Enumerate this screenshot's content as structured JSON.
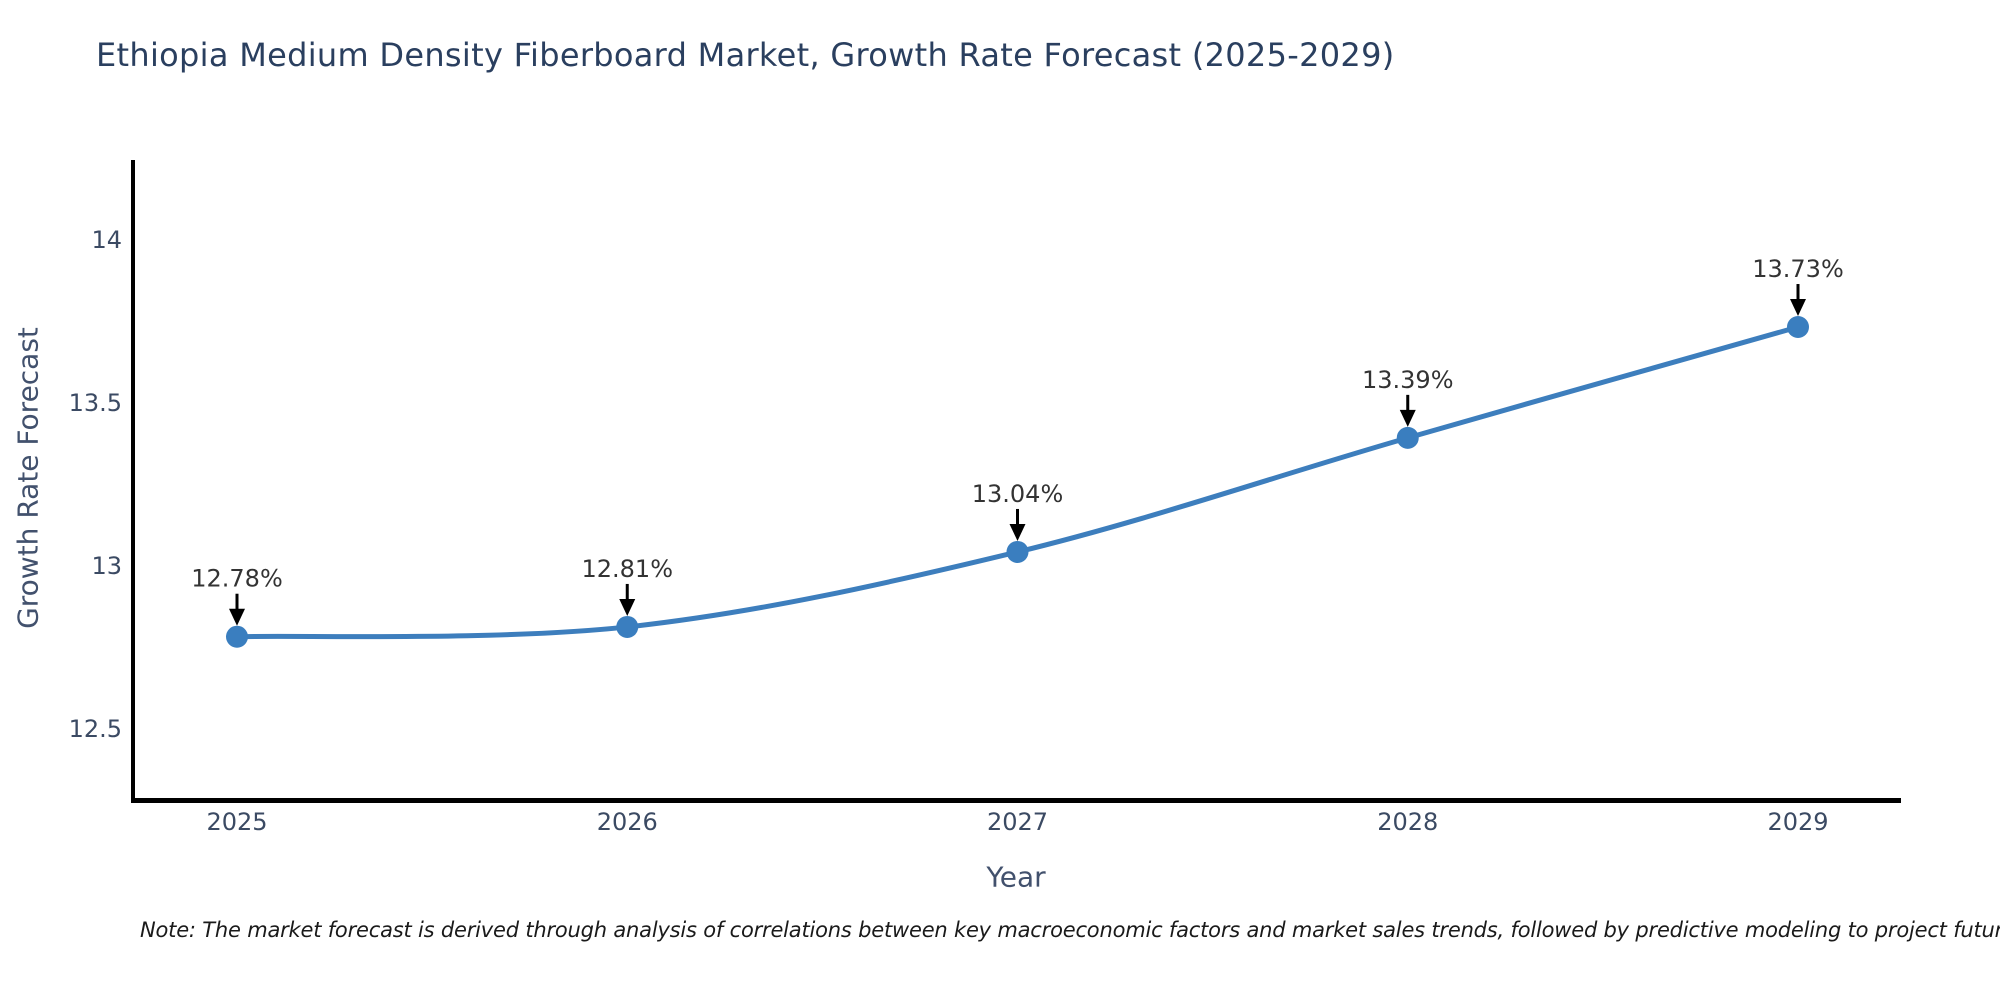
{
  "chart": {
    "title": "Ethiopia Medium Density Fiberboard Market, Growth Rate Forecast (2025-2029)",
    "ylabel": "Growth Rate Forecast",
    "xlabel": "Year",
    "note": "Note: The market forecast is derived through analysis of correlations between key macroeconomic factors and market sales trends, followed by predictive modeling to project future sal"
  },
  "colors": {
    "title": "#2a3f5f",
    "axis_label": "#42516d",
    "tick_label": "#3b4a63",
    "annotation_text": "#333333",
    "line": "#3d7ebd",
    "marker": "#3a7ebf",
    "arrow": "#000000",
    "spine": "#000000",
    "background": "#ffffff"
  },
  "chart_data": {
    "type": "line",
    "title": "Ethiopia Medium Density Fiberboard Market, Growth Rate Forecast (2025-2029)",
    "xlabel": "Year",
    "ylabel": "Growth Rate Forecast",
    "x": [
      2025,
      2026,
      2027,
      2028,
      2029
    ],
    "x_labels": [
      "2025",
      "2026",
      "2027",
      "2028",
      "2029"
    ],
    "series": [
      {
        "name": "Growth Rate Forecast",
        "values": [
          12.78,
          12.81,
          13.04,
          13.39,
          13.73
        ],
        "labels": [
          "12.78%",
          "12.81%",
          "13.04%",
          "13.39%",
          "13.73%"
        ]
      }
    ],
    "yticks": [
      {
        "value": 12.5,
        "label": "12.5"
      },
      {
        "value": 13,
        "label": "13"
      },
      {
        "value": 13.5,
        "label": "13.5"
      },
      {
        "value": 14,
        "label": "14"
      }
    ],
    "ylim": [
      12.28,
      14.24
    ],
    "xlim": [
      2024.73,
      2029.27
    ],
    "grid": false,
    "legend": "none",
    "smooth": true,
    "annotations_arrow": "down",
    "line_color": "#3d7ebd",
    "marker_color": "#3a7ebf",
    "arrow_color": "#000000",
    "axis_color": "#000000"
  }
}
